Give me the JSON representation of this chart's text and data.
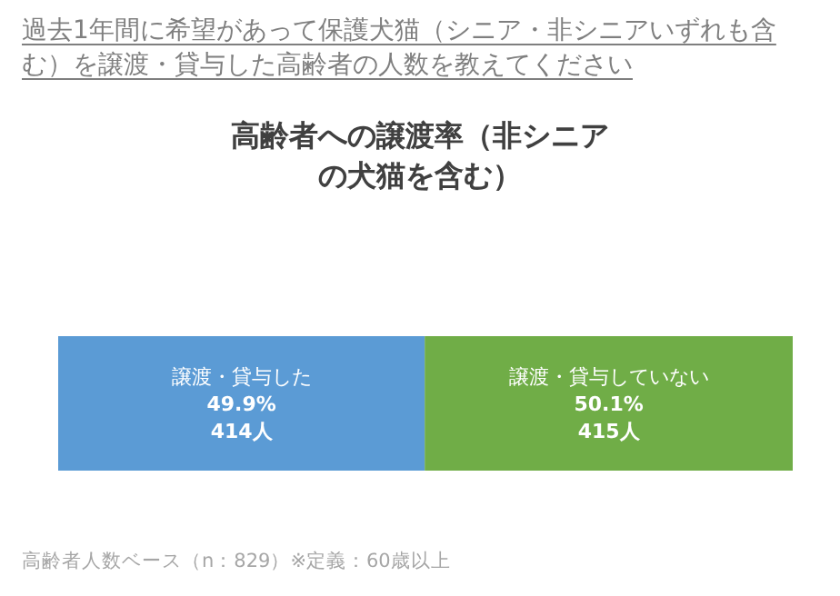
{
  "chart_data": {
    "type": "bar",
    "orientation": "horizontal",
    "stacked": true,
    "title": "過去1年間に希望があって保護犬猫（シニア・非シニアいずれも含む）を譲渡・貸与した高齢者の人数を教えてください",
    "subtitle": "高齢者への譲渡率（非シニアの犬猫を含む）",
    "categories": [
      null
    ],
    "series": [
      {
        "name": "譲渡・貸与した",
        "color": "#5b9bd5",
        "values": [
          49.9
        ],
        "value_labels": [
          "49.9%\n414人"
        ]
      },
      {
        "name": "譲渡・貸与していない",
        "color": "#70ad47",
        "values": [
          50.1
        ],
        "value_labels": [
          "50.1%\n415人"
        ]
      }
    ],
    "xlim": [
      0,
      100
    ],
    "tick_labels": false,
    "grid": false,
    "legend": false,
    "annotations": [
      "高齢者人数ベース（n：829）※定義：60歳以上"
    ]
  }
}
